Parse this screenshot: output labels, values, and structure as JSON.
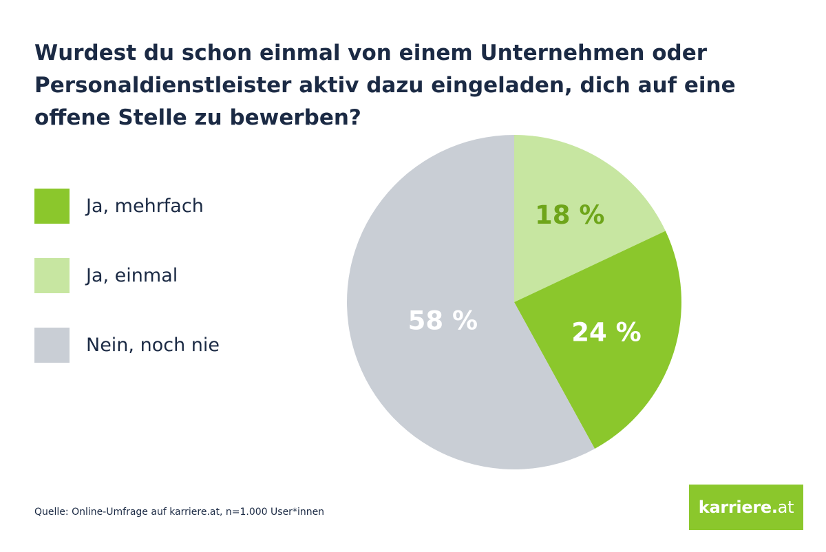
{
  "header": {
    "title": "Wurdest du schon einmal von einem Unternehmen oder Personaldienstleister aktiv dazu eingeladen, dich auf eine offene Stelle zu bewerben?"
  },
  "footer": {
    "source": "Quelle: Online-Umfrage auf karriere.at, n=1.000 User*innen"
  },
  "logo": {
    "main": "karriere.",
    "tld": "at"
  },
  "chart_data": {
    "type": "pie",
    "title": "Wurdest du schon einmal von einem Unternehmen oder Personaldienstleister aktiv dazu eingeladen, dich auf eine offene Stelle zu bewerben?",
    "categories": [
      "Ja, mehrfach",
      "Ja, einmal",
      "Nein, noch nie"
    ],
    "values": [
      24,
      18,
      58
    ],
    "unit": "%",
    "labels": [
      "24 %",
      "18 %",
      "58 %"
    ],
    "colors": [
      "#8bc72c",
      "#c7e6a1",
      "#c9ced5"
    ],
    "label_colors": [
      "#ffffff",
      "#6ea51a",
      "#ffffff"
    ],
    "legend_position": "left",
    "start_slice": "Ja, einmal",
    "direction": "clockwise from top"
  }
}
